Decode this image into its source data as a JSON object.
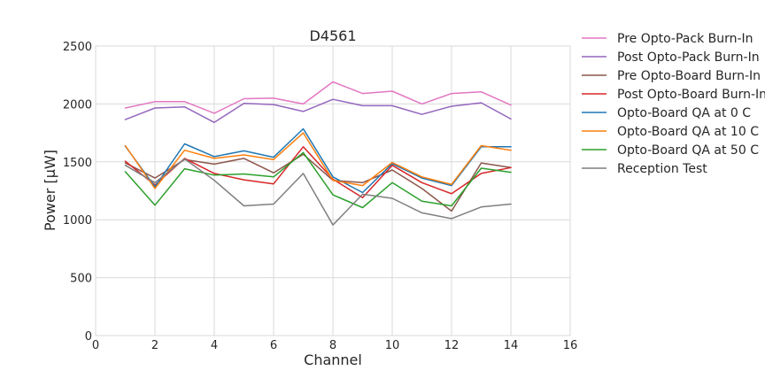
{
  "chart_data": {
    "type": "line",
    "title": "D4561",
    "xlabel": "Channel",
    "ylabel": "Power [μW]",
    "xlim": [
      0,
      16
    ],
    "ylim": [
      0,
      2500
    ],
    "xticks": [
      0,
      2,
      4,
      6,
      8,
      10,
      12,
      14,
      16
    ],
    "yticks": [
      0,
      500,
      1000,
      1500,
      2000,
      2500
    ],
    "grid": true,
    "legend_position": "outside-right",
    "x": [
      1,
      2,
      3,
      4,
      5,
      6,
      7,
      8,
      9,
      10,
      11,
      12,
      13,
      14
    ],
    "series": [
      {
        "name": "Pre Opto-Pack Burn-In",
        "color": "#e377c2",
        "values": [
          1965,
          2020,
          2020,
          1920,
          2045,
          2050,
          2000,
          2190,
          2090,
          2110,
          2000,
          2090,
          2105,
          1990
        ]
      },
      {
        "name": "Post Opto-Pack Burn-In",
        "color": "#9467bd",
        "values": [
          1865,
          1965,
          1975,
          1840,
          2005,
          1995,
          1935,
          2040,
          1985,
          1985,
          1910,
          1980,
          2010,
          1870
        ]
      },
      {
        "name": "Pre Opto-Board Burn-In",
        "color": "#8c564b",
        "values": [
          1490,
          1360,
          1520,
          1480,
          1530,
          1405,
          1565,
          1340,
          1320,
          1430,
          1270,
          1075,
          1490,
          1450
        ]
      },
      {
        "name": "Post Opto-Board Burn-In",
        "color": "#d62728",
        "values": [
          1505,
          1300,
          1530,
          1400,
          1345,
          1310,
          1630,
          1350,
          1190,
          1470,
          1320,
          1225,
          1400,
          1450
        ]
      },
      {
        "name": "Opto-Board QA at 0 C",
        "color": "#1f77b4",
        "values": [
          1635,
          1285,
          1655,
          1545,
          1595,
          1540,
          1785,
          1370,
          1235,
          1485,
          1360,
          1295,
          1630,
          1630
        ]
      },
      {
        "name": "Opto-Board QA at 10 C",
        "color": "#ff7f0e",
        "values": [
          1640,
          1270,
          1600,
          1530,
          1560,
          1520,
          1750,
          1340,
          1295,
          1495,
          1370,
          1305,
          1640,
          1600
        ]
      },
      {
        "name": "Opto-Board QA at 50 C",
        "color": "#2ca02c",
        "values": [
          1415,
          1125,
          1440,
          1385,
          1395,
          1370,
          1580,
          1215,
          1105,
          1320,
          1160,
          1120,
          1445,
          1410
        ]
      },
      {
        "name": "Reception Test",
        "color": "#7f7f7f",
        "values": [
          1470,
          1320,
          1525,
          1340,
          1120,
          1135,
          1400,
          955,
          1220,
          1185,
          1060,
          1010,
          1110,
          1135
        ]
      }
    ]
  }
}
